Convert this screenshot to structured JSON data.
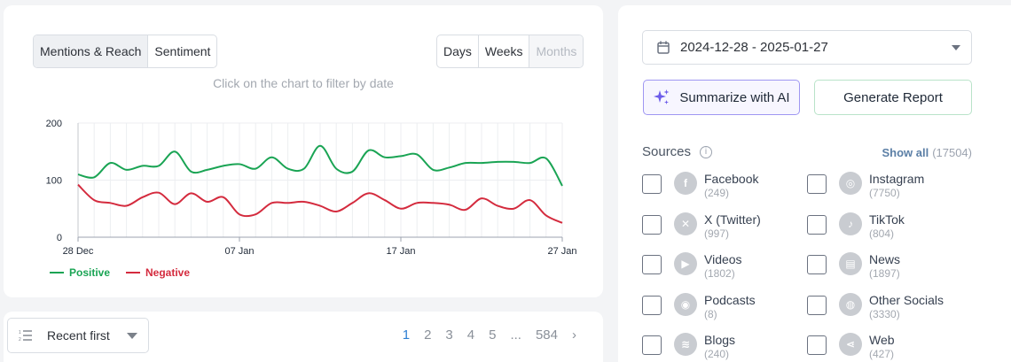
{
  "chart_panel": {
    "view_tabs": [
      "Mentions & Reach",
      "Sentiment"
    ],
    "range_tabs": [
      "Days",
      "Weeks",
      "Months"
    ],
    "hint": "Click on the chart to filter by date"
  },
  "chart_data": {
    "type": "line",
    "x_ticks": [
      "28 Dec",
      "07 Jan",
      "17 Jan",
      "27 Jan"
    ],
    "y_ticks": [
      "200",
      "100",
      "0"
    ],
    "ylim": [
      0,
      200
    ],
    "x": [
      "2024-12-28",
      "2024-12-29",
      "2024-12-30",
      "2024-12-31",
      "2025-01-01",
      "2025-01-02",
      "2025-01-03",
      "2025-01-04",
      "2025-01-05",
      "2025-01-06",
      "2025-01-07",
      "2025-01-08",
      "2025-01-09",
      "2025-01-10",
      "2025-01-11",
      "2025-01-12",
      "2025-01-13",
      "2025-01-14",
      "2025-01-15",
      "2025-01-16",
      "2025-01-17",
      "2025-01-18",
      "2025-01-19",
      "2025-01-20",
      "2025-01-21",
      "2025-01-22",
      "2025-01-23",
      "2025-01-24",
      "2025-01-25",
      "2025-01-26",
      "2025-01-27"
    ],
    "series": [
      {
        "name": "Positive",
        "color": "#1aa454",
        "values": [
          110,
          105,
          130,
          118,
          125,
          125,
          150,
          115,
          118,
          125,
          128,
          120,
          140,
          120,
          120,
          160,
          120,
          115,
          152,
          140,
          142,
          145,
          118,
          122,
          130,
          130,
          132,
          132,
          130,
          138,
          90
        ]
      },
      {
        "name": "Negative",
        "color": "#d42b3e",
        "values": [
          92,
          65,
          60,
          55,
          70,
          78,
          58,
          77,
          62,
          70,
          40,
          40,
          60,
          60,
          62,
          55,
          45,
          60,
          77,
          65,
          50,
          60,
          60,
          57,
          48,
          68,
          55,
          50,
          65,
          38,
          25
        ]
      }
    ],
    "legend": "bottom-left",
    "grid": true
  },
  "pager": {
    "sort_label": "Recent first",
    "pages": [
      "1",
      "2",
      "3",
      "4",
      "5",
      "...",
      "584"
    ],
    "next": "›"
  },
  "filters": {
    "date_range": "2024-12-28 - 2025-01-27",
    "ai_button": "Summarize with AI",
    "report_button": "Generate Report",
    "sources_title": "Sources",
    "info": "i",
    "show_all": "Show all",
    "show_all_count": "(17504)",
    "sources": [
      {
        "name": "Facebook",
        "count": "(249)",
        "icon": "facebook-icon",
        "glyph": "f"
      },
      {
        "name": "Instagram",
        "count": "(7750)",
        "icon": "instagram-icon",
        "glyph": "◎"
      },
      {
        "name": "X (Twitter)",
        "count": "(997)",
        "icon": "x-twitter-icon",
        "glyph": "✕"
      },
      {
        "name": "TikTok",
        "count": "(804)",
        "icon": "tiktok-icon",
        "glyph": "♪"
      },
      {
        "name": "Videos",
        "count": "(1802)",
        "icon": "video-play-icon",
        "glyph": "▶"
      },
      {
        "name": "News",
        "count": "(1897)",
        "icon": "news-icon",
        "glyph": "▤"
      },
      {
        "name": "Podcasts",
        "count": "(8)",
        "icon": "podcast-icon",
        "glyph": "◉"
      },
      {
        "name": "Other Socials",
        "count": "(3330)",
        "icon": "other-socials-icon",
        "glyph": "◍"
      },
      {
        "name": "Blogs",
        "count": "(240)",
        "icon": "rss-icon",
        "glyph": "≋"
      },
      {
        "name": "Web",
        "count": "(427)",
        "icon": "share-icon",
        "glyph": "⋖"
      }
    ]
  }
}
